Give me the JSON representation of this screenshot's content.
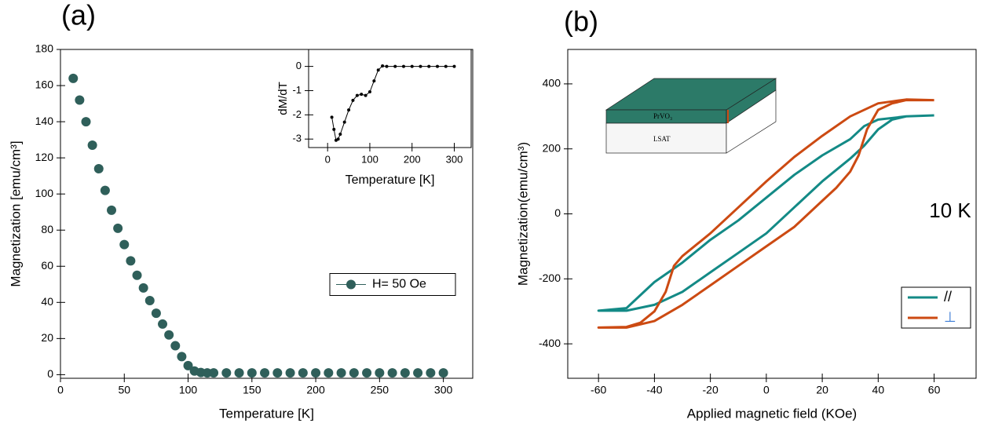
{
  "chart_data": [
    {
      "type": "scatter",
      "title": "(a)",
      "xlabel": "Temperature [K]",
      "ylabel": "Magnetization [emu/cm³]",
      "x": [
        10,
        15,
        20,
        25,
        30,
        35,
        40,
        45,
        50,
        55,
        60,
        65,
        70,
        75,
        80,
        85,
        90,
        95,
        100,
        105,
        110,
        115,
        120,
        130,
        140,
        150,
        160,
        170,
        180,
        190,
        200,
        210,
        220,
        230,
        240,
        250,
        260,
        270,
        280,
        290,
        300
      ],
      "series": [
        {
          "name": "H= 50 Oe",
          "color": "#2f5f5a",
          "values": [
            164,
            152,
            140,
            127,
            114,
            102,
            91,
            81,
            72,
            63,
            55,
            48,
            41,
            34,
            28,
            22,
            16,
            10,
            5,
            2,
            1.2,
            1,
            1,
            1,
            1,
            1,
            1,
            1,
            1,
            1,
            1,
            1,
            1,
            1,
            1,
            1,
            1,
            1,
            1,
            1,
            1
          ]
        }
      ],
      "xlim": [
        0,
        323
      ],
      "ylim": [
        -2,
        180
      ],
      "xticks": [
        0,
        50,
        100,
        150,
        200,
        250,
        300
      ],
      "yticks": [
        0,
        20,
        40,
        60,
        80,
        100,
        120,
        140,
        160,
        180
      ],
      "legend": "center right"
    },
    {
      "type": "line",
      "xlabel": "Temperature [K]",
      "ylabel": "dM/dT",
      "markers": true,
      "x": [
        10,
        15,
        20,
        25,
        30,
        40,
        50,
        60,
        70,
        80,
        90,
        100,
        110,
        120,
        130,
        140,
        160,
        180,
        200,
        220,
        240,
        260,
        280,
        300
      ],
      "series": [
        {
          "color": "#000000",
          "values": [
            -2.1,
            -2.6,
            -3.05,
            -3.0,
            -2.8,
            -2.3,
            -1.8,
            -1.4,
            -1.2,
            -1.15,
            -1.2,
            -1.05,
            -0.6,
            -0.15,
            0.02,
            0,
            0,
            0,
            0,
            0,
            0,
            0,
            0,
            0
          ]
        }
      ],
      "xlim": [
        -45,
        340
      ],
      "ylim": [
        -3.35,
        0.7
      ],
      "xticks": [
        0,
        100,
        200,
        300
      ],
      "yticks": [
        0,
        -1,
        -2,
        -3
      ]
    },
    {
      "type": "line",
      "title": "(b)",
      "xlabel": "Applied magnetic field (KOe)",
      "ylabel": "Magnetization(emu/cm³)",
      "annotation": "10 K",
      "series": [
        {
          "name": "//",
          "color": "#138a86",
          "x": [
            60,
            50,
            40,
            35,
            30,
            20,
            10,
            0,
            -10,
            -20,
            -30,
            -40,
            -45,
            -50,
            -60,
            -50,
            -40,
            -30,
            -20,
            -10,
            0,
            10,
            20,
            30,
            35,
            40,
            45,
            50,
            60
          ],
          "values": [
            303,
            300,
            290,
            270,
            230,
            180,
            120,
            50,
            -20,
            -80,
            -150,
            -210,
            -250,
            -290,
            -298,
            -298,
            -280,
            -240,
            -180,
            -120,
            -60,
            20,
            100,
            170,
            210,
            260,
            290,
            300,
            303
          ]
        },
        {
          "name": "⊥",
          "color": "#cc4a12",
          "x": [
            60,
            50,
            40,
            30,
            20,
            10,
            0,
            -10,
            -20,
            -30,
            -33,
            -36,
            -40,
            -45,
            -50,
            -60,
            -50,
            -40,
            -30,
            -20,
            -10,
            0,
            10,
            20,
            25,
            30,
            33,
            36,
            40,
            45,
            50,
            60
          ],
          "values": [
            350,
            352,
            340,
            300,
            240,
            175,
            100,
            20,
            -60,
            -130,
            -160,
            -240,
            -300,
            -335,
            -348,
            -350,
            -350,
            -330,
            -280,
            -220,
            -160,
            -100,
            -40,
            40,
            80,
            130,
            180,
            260,
            320,
            340,
            350,
            350
          ]
        }
      ],
      "xlim": [
        -71,
        75
      ],
      "ylim": [
        -506,
        506
      ],
      "xticks": [
        -60,
        -40,
        -20,
        0,
        20,
        40,
        60
      ],
      "yticks": [
        -400,
        -200,
        0,
        200,
        400
      ],
      "legend": "lower right"
    }
  ],
  "diagram": {
    "layers": [
      "PrVO₃",
      "LSAT"
    ]
  }
}
